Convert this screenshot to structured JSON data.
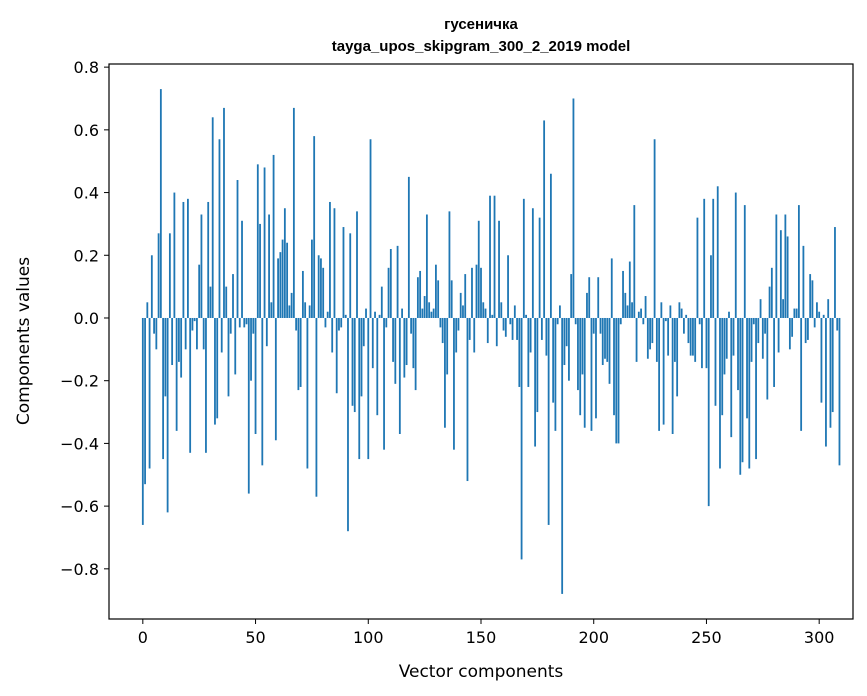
{
  "chart_data": {
    "type": "bar",
    "title": "гусеничка",
    "subtitle": "tayga_upos_skipgram_300_2_2019 model",
    "xlabel": "Vector components",
    "ylabel": "Components values",
    "xlim": [
      -15,
      315
    ],
    "ylim": [
      -0.96,
      0.81
    ],
    "xticks": [
      0,
      50,
      100,
      150,
      200,
      250,
      300
    ],
    "xtick_labels": [
      "0",
      "50",
      "100",
      "150",
      "200",
      "250",
      "300"
    ],
    "yticks": [
      -0.8,
      -0.6,
      -0.4,
      -0.2,
      0.0,
      0.2,
      0.4,
      0.6,
      0.8
    ],
    "ytick_labels": [
      "−0.8",
      "−0.6",
      "−0.4",
      "−0.2",
      "0.0",
      "0.2",
      "0.4",
      "0.6",
      "0.8"
    ],
    "grid": false,
    "bar_color": "#1f77b4",
    "values": [
      -0.66,
      -0.53,
      0.05,
      -0.48,
      0.2,
      -0.05,
      -0.1,
      0.27,
      0.73,
      -0.45,
      -0.25,
      -0.62,
      0.27,
      -0.15,
      0.4,
      -0.36,
      -0.14,
      -0.19,
      0.37,
      -0.1,
      0.38,
      -0.43,
      -0.04,
      -0.01,
      -0.1,
      0.17,
      0.33,
      -0.1,
      -0.43,
      0.37,
      0.1,
      0.64,
      -0.34,
      -0.32,
      0.57,
      -0.11,
      0.67,
      0.1,
      -0.25,
      -0.05,
      0.14,
      -0.18,
      0.44,
      -0.03,
      0.31,
      -0.03,
      -0.02,
      -0.56,
      -0.2,
      -0.05,
      -0.37,
      0.49,
      0.3,
      -0.47,
      0.48,
      -0.09,
      0.33,
      0.05,
      0.52,
      -0.39,
      0.19,
      0.21,
      0.25,
      0.35,
      0.24,
      0.04,
      0.08,
      0.67,
      -0.04,
      -0.23,
      -0.22,
      0.15,
      0.05,
      -0.48,
      0.04,
      0.25,
      0.58,
      -0.57,
      0.2,
      0.19,
      0.16,
      -0.03,
      0.02,
      0.37,
      -0.11,
      0.35,
      -0.24,
      -0.04,
      -0.03,
      0.29,
      0.01,
      -0.68,
      0.27,
      -0.28,
      -0.3,
      0.34,
      -0.45,
      -0.25,
      -0.09,
      0.03,
      -0.45,
      0.57,
      -0.16,
      0.02,
      -0.31,
      0.01,
      0.1,
      -0.42,
      -0.03,
      0.16,
      0.22,
      -0.14,
      -0.21,
      0.23,
      -0.37,
      0.03,
      -0.19,
      -0.15,
      0.45,
      -0.05,
      -0.16,
      -0.23,
      0.13,
      0.15,
      0.03,
      0.07,
      0.33,
      0.05,
      0.02,
      0.03,
      0.17,
      0.12,
      -0.03,
      -0.08,
      -0.35,
      -0.18,
      0.34,
      0.12,
      -0.42,
      -0.11,
      -0.04,
      0.08,
      0.04,
      0.14,
      -0.52,
      -0.07,
      0.16,
      -0.11,
      0.17,
      0.31,
      0.16,
      0.05,
      0.03,
      -0.08,
      0.39,
      0.01,
      0.39,
      -0.09,
      0.31,
      0.05,
      -0.04,
      -0.06,
      0.2,
      -0.02,
      -0.07,
      0.04,
      -0.07,
      -0.22,
      -0.77,
      0.38,
      0.01,
      -0.22,
      -0.11,
      0.35,
      -0.41,
      -0.3,
      0.32,
      -0.07,
      0.63,
      -0.12,
      -0.66,
      0.46,
      -0.27,
      -0.36,
      -0.02,
      0.04,
      -0.88,
      -0.15,
      -0.09,
      -0.2,
      0.14,
      0.7,
      -0.02,
      -0.23,
      -0.31,
      -0.18,
      -0.35,
      0.08,
      0.13,
      -0.36,
      -0.05,
      -0.32,
      0.13,
      -0.05,
      -0.15,
      -0.13,
      -0.14,
      -0.21,
      0.19,
      -0.31,
      -0.4,
      -0.4,
      -0.02,
      0.15,
      0.08,
      0.04,
      0.18,
      0.05,
      0.36,
      -0.14,
      0.02,
      0.03,
      -0.02,
      0.07,
      -0.13,
      -0.1,
      -0.08,
      0.57,
      -0.14,
      -0.36,
      0.05,
      -0.34,
      -0.01,
      -0.12,
      0.04,
      -0.37,
      -0.14,
      -0.25,
      0.05,
      0.03,
      -0.05,
      0.01,
      -0.08,
      -0.12,
      -0.12,
      -0.14,
      0.32,
      -0.02,
      -0.16,
      0.38,
      -0.16,
      -0.6,
      0.2,
      0.38,
      -0.28,
      0.42,
      -0.48,
      -0.31,
      -0.18,
      -0.13,
      0.02,
      -0.38,
      -0.12,
      0.4,
      -0.23,
      -0.5,
      -0.46,
      0.36,
      -0.32,
      -0.48,
      -0.14,
      -0.02,
      -0.45,
      -0.08,
      0.06,
      -0.13,
      -0.05,
      -0.26,
      0.1,
      0.16,
      -0.22,
      0.33,
      -0.11,
      0.28,
      0.06,
      0.33,
      0.26,
      -0.1,
      -0.06,
      0.03,
      0.03,
      0.36,
      -0.36,
      0.23,
      -0.08,
      -0.07,
      0.14,
      0.12,
      -0.03,
      0.05,
      0.02,
      -0.27,
      0.01,
      -0.41,
      0.06,
      -0.35,
      -0.3,
      0.29,
      -0.04,
      -0.47
    ]
  }
}
